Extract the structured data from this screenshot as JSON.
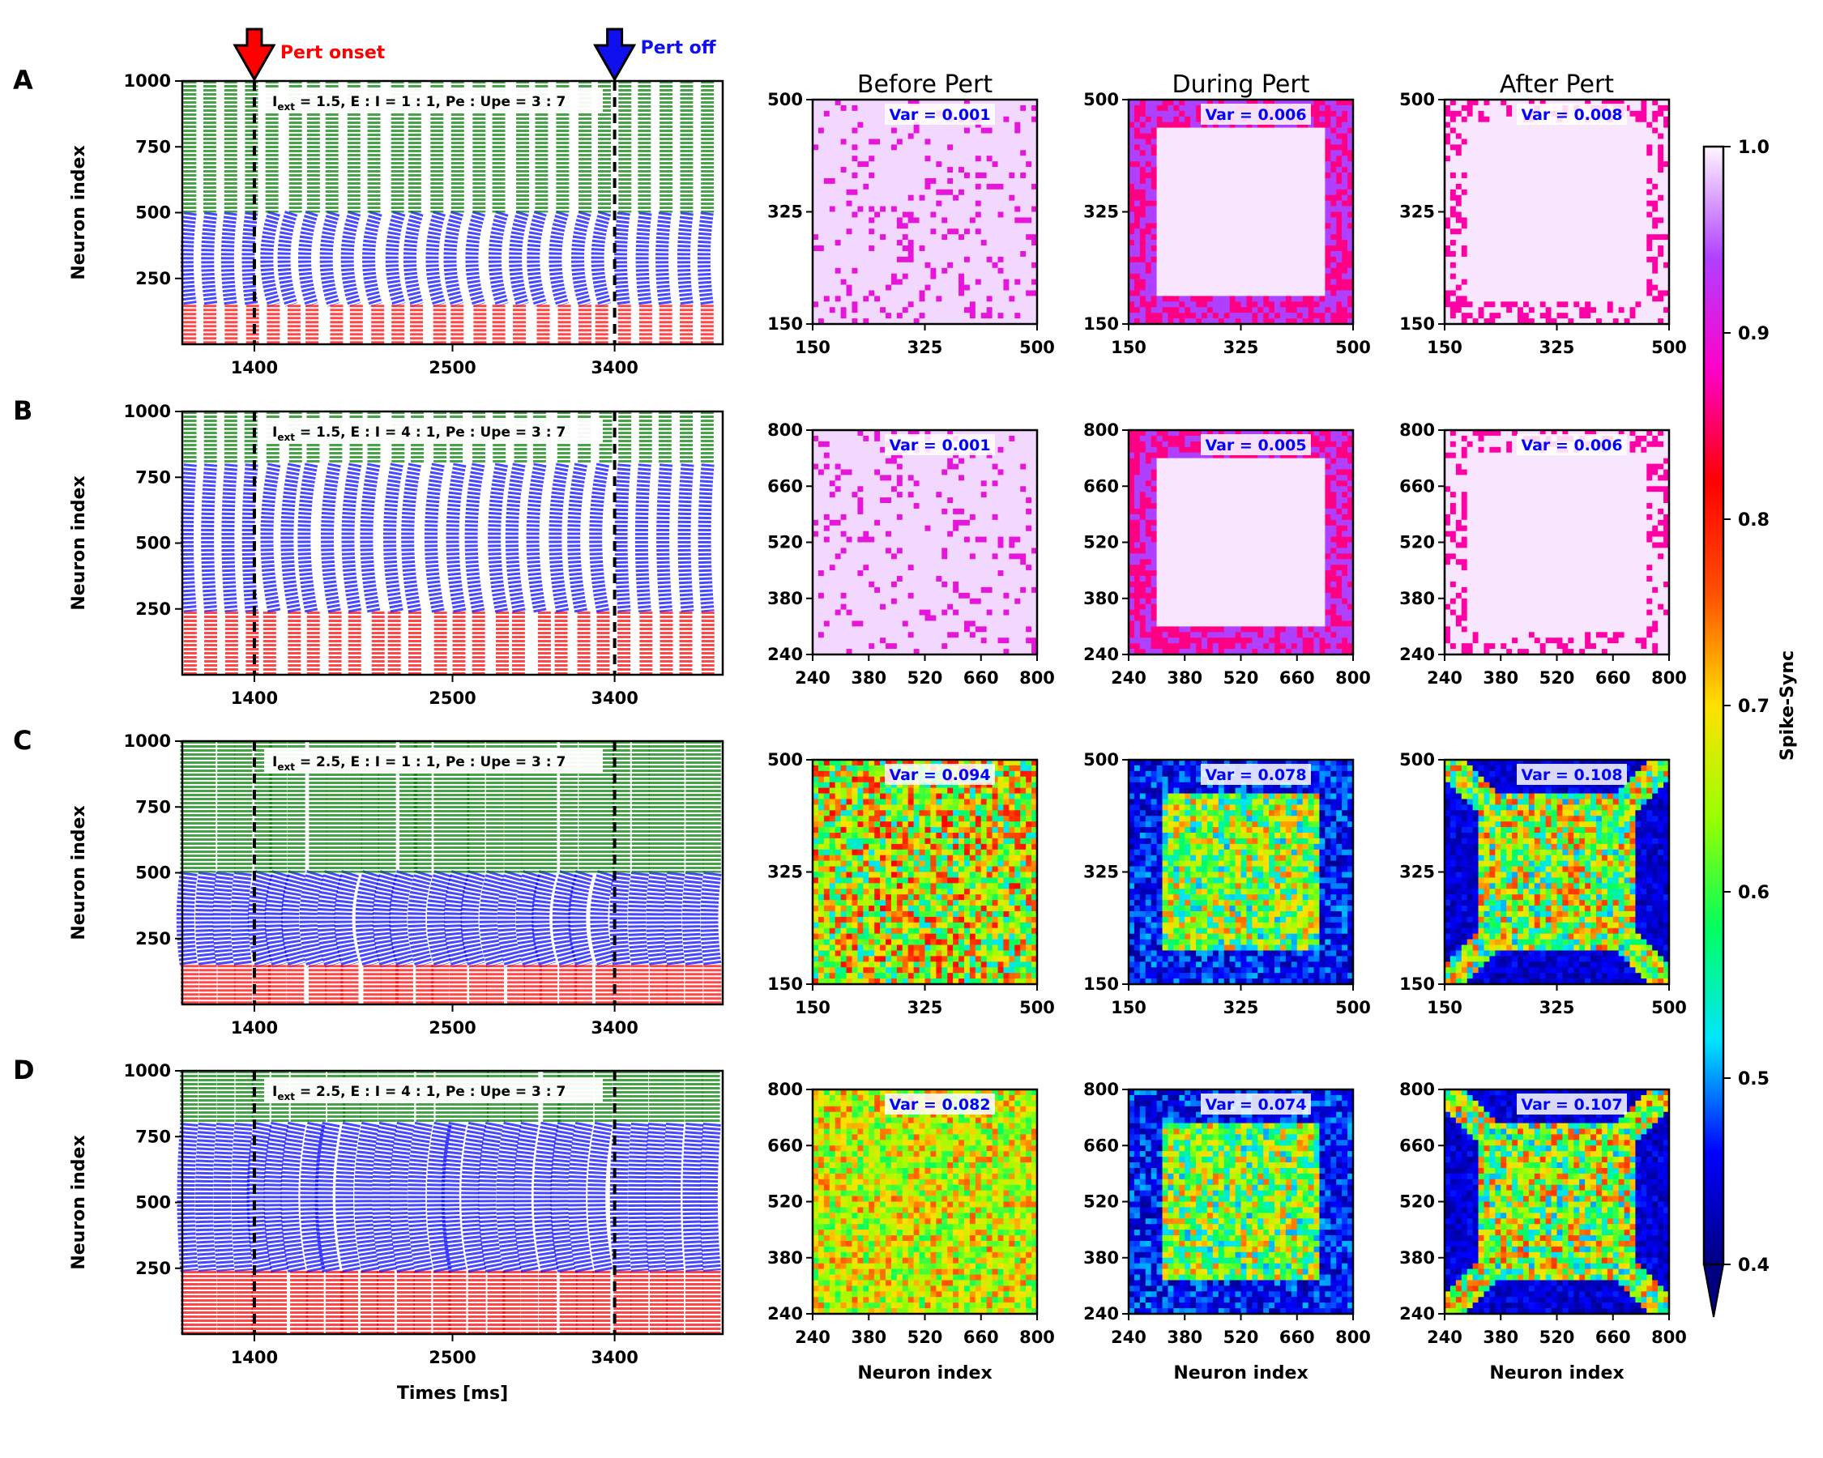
{
  "colors": {
    "inhibitory": "#ff0000",
    "excitatory_pe": "#0000ff",
    "excitatory_upe": "#008000",
    "onset_arrow": "#ff0000",
    "off_arrow": "#1010ee",
    "var_text": "#0000ff"
  },
  "annotations": {
    "onset": "Pert onset",
    "off": "Pert off"
  },
  "matrix_titles": [
    "Before Pert",
    "During Pert",
    "After Pert"
  ],
  "colorbar": {
    "label": "Spike-Sync",
    "range": [
      0.4,
      1.0
    ],
    "ticks": [
      "0.4",
      "0.5",
      "0.6",
      "0.7",
      "0.8",
      "0.9",
      "1.0"
    ],
    "colormap": "gist_ncar_r",
    "extend": "min"
  },
  "chart_data": [
    {
      "type": "scatter",
      "panel": "A",
      "label_main": "I",
      "label_sub": "ext",
      "label_rest": " = 1.5, E : I = 1 : 1, Pe : Upe = 3 : 7",
      "xlim": [
        1000,
        4000
      ],
      "xticks": [
        "1400",
        "2500",
        "3400"
      ],
      "ylim": [
        0,
        1000
      ],
      "yticks": [
        "250",
        "500",
        "750",
        "1000"
      ],
      "ylabel": "Neuron index",
      "xlabel": "",
      "inhibitory_range": [
        0,
        150
      ],
      "pe_range": [
        150,
        500
      ],
      "upe_range": [
        500,
        1000
      ],
      "perturbation": [
        1400,
        3400
      ],
      "matrices": [
        {
          "ticks": [
            "150",
            "325",
            "500"
          ],
          "var": "Var = 0.001",
          "xlabel": "",
          "style": "uniform_high"
        },
        {
          "ticks": [
            "150",
            "325",
            "500"
          ],
          "var": "Var = 0.006",
          "xlabel": "",
          "style": "frame_high"
        },
        {
          "ticks": [
            "150",
            "325",
            "500"
          ],
          "var": "Var = 0.008",
          "xlabel": "",
          "style": "frame_sparse"
        }
      ]
    },
    {
      "type": "scatter",
      "panel": "B",
      "label_main": "I",
      "label_sub": "ext",
      "label_rest": " = 1.5, E : I = 4 : 1, Pe : Upe = 3 : 7",
      "xlim": [
        1000,
        4000
      ],
      "xticks": [
        "1400",
        "2500",
        "3400"
      ],
      "ylim": [
        0,
        1000
      ],
      "yticks": [
        "250",
        "500",
        "750",
        "1000"
      ],
      "ylabel": "Neuron index",
      "xlabel": "",
      "inhibitory_range": [
        0,
        240
      ],
      "pe_range": [
        240,
        800
      ],
      "upe_range": [
        800,
        1000
      ],
      "perturbation": [
        1400,
        3400
      ],
      "matrices": [
        {
          "ticks": [
            "240",
            "380",
            "520",
            "660",
            "800"
          ],
          "var": "Var = 0.001",
          "xlabel": "",
          "style": "uniform_high"
        },
        {
          "ticks": [
            "240",
            "380",
            "520",
            "660",
            "800"
          ],
          "var": "Var = 0.005",
          "xlabel": "",
          "style": "frame_high"
        },
        {
          "ticks": [
            "240",
            "380",
            "520",
            "660",
            "800"
          ],
          "var": "Var = 0.006",
          "xlabel": "",
          "style": "frame_sparse"
        }
      ]
    },
    {
      "type": "scatter",
      "panel": "C",
      "label_main": "I",
      "label_sub": "ext",
      "label_rest": " = 2.5, E : I = 1 : 1, Pe : Upe = 3 : 7",
      "xlim": [
        1000,
        4000
      ],
      "xticks": [
        "1400",
        "2500",
        "3400"
      ],
      "ylim": [
        0,
        1000
      ],
      "yticks": [
        "250",
        "500",
        "750",
        "1000"
      ],
      "ylabel": "Neuron index",
      "xlabel": "",
      "inhibitory_range": [
        0,
        150
      ],
      "pe_range": [
        150,
        500
      ],
      "upe_range": [
        500,
        1000
      ],
      "perturbation": [
        1400,
        3400
      ],
      "matrices": [
        {
          "ticks": [
            "150",
            "325",
            "500"
          ],
          "var": "Var = 0.094",
          "xlabel": "",
          "style": "mixed"
        },
        {
          "ticks": [
            "150",
            "325",
            "500"
          ],
          "var": "Var = 0.078",
          "xlabel": "",
          "style": "dark_frame"
        },
        {
          "ticks": [
            "150",
            "325",
            "500"
          ],
          "var": "Var = 0.108",
          "xlabel": "",
          "style": "dark_x"
        }
      ]
    },
    {
      "type": "scatter",
      "panel": "D",
      "label_main": "I",
      "label_sub": "ext",
      "label_rest": " = 2.5, E : I = 4 : 1, Pe : Upe = 3 : 7",
      "xlim": [
        1000,
        4000
      ],
      "xticks": [
        "1400",
        "2500",
        "3400"
      ],
      "ylim": [
        0,
        1000
      ],
      "yticks": [
        "250",
        "500",
        "750",
        "1000"
      ],
      "ylabel": "Neuron index",
      "xlabel": "Times [ms]",
      "inhibitory_range": [
        0,
        240
      ],
      "pe_range": [
        240,
        800
      ],
      "upe_range": [
        800,
        1000
      ],
      "perturbation": [
        1400,
        3400
      ],
      "matrices": [
        {
          "ticks": [
            "240",
            "380",
            "520",
            "660",
            "800"
          ],
          "var": "Var = 0.082",
          "xlabel": "Neuron index",
          "style": "mixed_green"
        },
        {
          "ticks": [
            "240",
            "380",
            "520",
            "660",
            "800"
          ],
          "var": "Var = 0.074",
          "xlabel": "Neuron index",
          "style": "dark_frame"
        },
        {
          "ticks": [
            "240",
            "380",
            "520",
            "660",
            "800"
          ],
          "var": "Var = 0.107",
          "xlabel": "Neuron index",
          "style": "dark_x"
        }
      ]
    }
  ]
}
